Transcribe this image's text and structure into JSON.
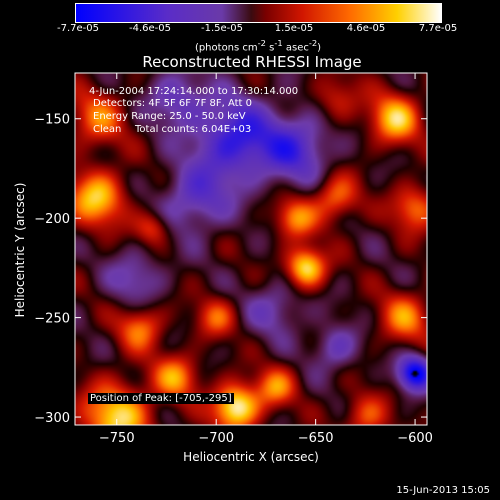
{
  "chart_data": {
    "type": "heatmap",
    "title": "Reconstructed RHESSI Image",
    "xlabel": "Heliocentric X (arcsec)",
    "ylabel": "Heliocentric Y (arcsec)",
    "xlim": [
      -771,
      -594
    ],
    "ylim": [
      -304,
      -127
    ],
    "xticks": [
      -750,
      -700,
      -650,
      -600
    ],
    "yticks": [
      -150,
      -200,
      -250,
      -300
    ],
    "colorbar": {
      "min": -7.7e-05,
      "max": 7.7e-05,
      "tick_labels": [
        "-7.7e-05",
        "-4.6e-05",
        "-1.5e-05",
        "1.5e-05",
        "4.6e-05",
        "7.7e-05"
      ],
      "units_html": "(photons cm<sup>-2</sup> s<sup>-1</sup> asec<sup>-2</sup>)"
    },
    "peak": {
      "x": -705,
      "y": -295
    },
    "blobs": [
      {
        "x": -760,
        "y": -190,
        "v": 0.75,
        "s": 10
      },
      {
        "x": -690,
        "y": -295,
        "v": 1.0,
        "s": 8
      },
      {
        "x": -750,
        "y": -300,
        "v": 0.8,
        "s": 12
      },
      {
        "x": -720,
        "y": -280,
        "v": 0.6,
        "s": 8
      },
      {
        "x": -655,
        "y": -225,
        "v": 0.9,
        "s": 7
      },
      {
        "x": -660,
        "y": -200,
        "v": 0.6,
        "s": 7
      },
      {
        "x": -640,
        "y": -190,
        "v": 0.55,
        "s": 8
      },
      {
        "x": -610,
        "y": -150,
        "v": 0.75,
        "s": 9
      },
      {
        "x": -600,
        "y": -195,
        "v": 0.55,
        "s": 8
      },
      {
        "x": -605,
        "y": -250,
        "v": 0.55,
        "s": 9
      },
      {
        "x": -625,
        "y": -300,
        "v": 0.45,
        "s": 8
      },
      {
        "x": -738,
        "y": -255,
        "v": 0.55,
        "s": 8
      },
      {
        "x": -732,
        "y": -205,
        "v": 0.45,
        "s": 6
      },
      {
        "x": -760,
        "y": -150,
        "v": 0.5,
        "s": 10
      },
      {
        "x": -700,
        "y": -250,
        "v": 0.45,
        "s": 7
      },
      {
        "x": -670,
        "y": -285,
        "v": 0.55,
        "s": 7
      },
      {
        "x": -640,
        "y": -140,
        "v": 0.35,
        "s": 8
      },
      {
        "x": -690,
        "y": -160,
        "v": -0.75,
        "s": 14
      },
      {
        "x": -660,
        "y": -165,
        "v": -0.6,
        "s": 12
      },
      {
        "x": -710,
        "y": -190,
        "v": -0.5,
        "s": 12
      },
      {
        "x": -670,
        "y": -245,
        "v": -0.35,
        "s": 10
      },
      {
        "x": -600,
        "y": -278,
        "v": -1.0,
        "s": 6
      },
      {
        "x": -740,
        "y": -230,
        "v": -0.35,
        "s": 10
      },
      {
        "x": -640,
        "y": -265,
        "v": -0.4,
        "s": 8
      },
      {
        "x": -720,
        "y": -140,
        "v": -0.45,
        "s": 10
      }
    ]
  },
  "info": {
    "time_range": "4-Jun-2004 17:24:14.000 to 17:30:14.000",
    "detectors": "Detectors: 4F 5F 6F 7F 8F, Att 0",
    "energy_range": "Energy Range: 25.0 - 50.0 keV",
    "clean_label": "Clean",
    "total_counts": "Total counts: 6.04E+03",
    "peak_label": "Position of Peak:",
    "peak_value": "[-705,-295]"
  },
  "timestamp": "15-Jun-2013 15:05"
}
